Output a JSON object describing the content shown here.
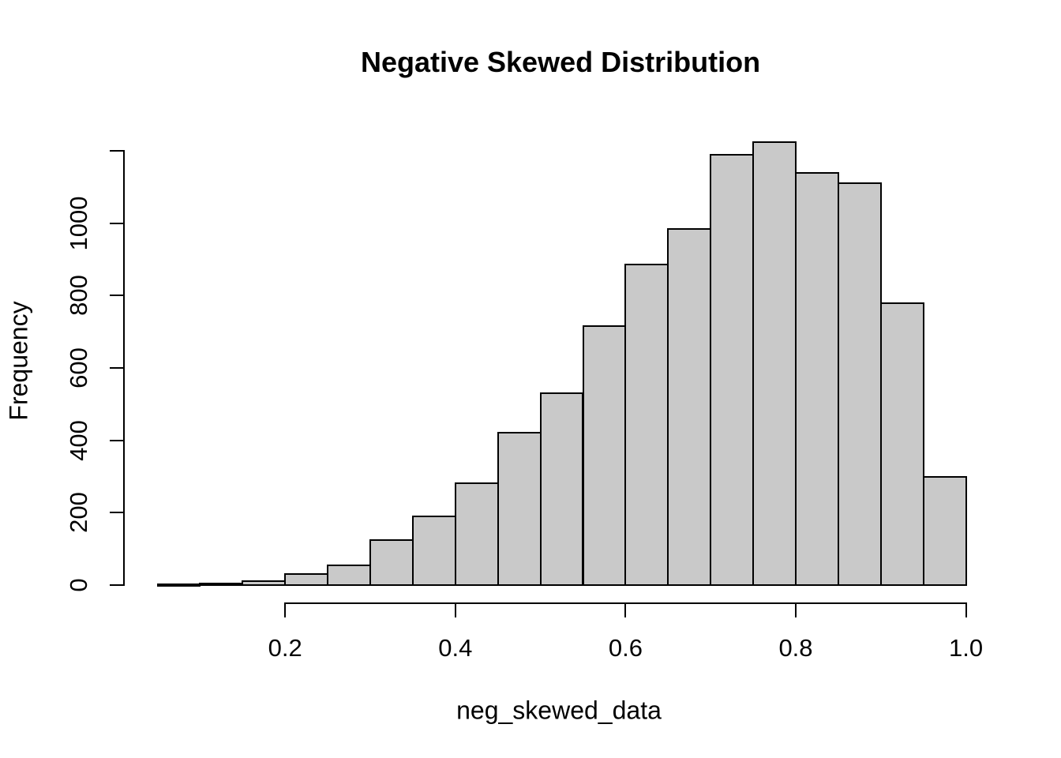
{
  "title": "Negative Skewed Distribution",
  "chart_data": {
    "type": "bar",
    "subtype": "histogram",
    "title": "Negative Skewed Distribution",
    "xlabel": "neg_skewed_data",
    "ylabel": "Frequency",
    "bin_width": 0.05,
    "bin_edges": [
      0.05,
      0.1,
      0.15,
      0.2,
      0.25,
      0.3,
      0.35,
      0.4,
      0.45,
      0.5,
      0.55,
      0.6,
      0.65,
      0.7,
      0.75,
      0.8,
      0.85,
      0.9,
      0.95,
      1.0
    ],
    "counts": [
      2,
      5,
      10,
      30,
      55,
      125,
      190,
      281,
      422,
      530,
      715,
      885,
      985,
      1190,
      1225,
      1140,
      1110,
      778,
      300
    ],
    "x_ticks": [
      0.2,
      0.4,
      0.6,
      0.8,
      1.0
    ],
    "x_tick_labels": [
      "0.2",
      "0.4",
      "0.6",
      "0.8",
      "1.0"
    ],
    "y_ticks": [
      0,
      200,
      400,
      600,
      800,
      1000
    ],
    "y_tick_labels": [
      "0",
      "200",
      "400",
      "600",
      "800",
      "1000"
    ],
    "y_axis_end": 1200,
    "xlim": [
      0.05,
      1.0
    ],
    "ylim": [
      0,
      1200
    ],
    "grid": "off",
    "legend": "none",
    "colors": {
      "bar_fill": "#C9C9C9",
      "bar_stroke": "#000000",
      "axis": "#000000",
      "text": "#000000",
      "background": "#FFFFFF"
    }
  }
}
